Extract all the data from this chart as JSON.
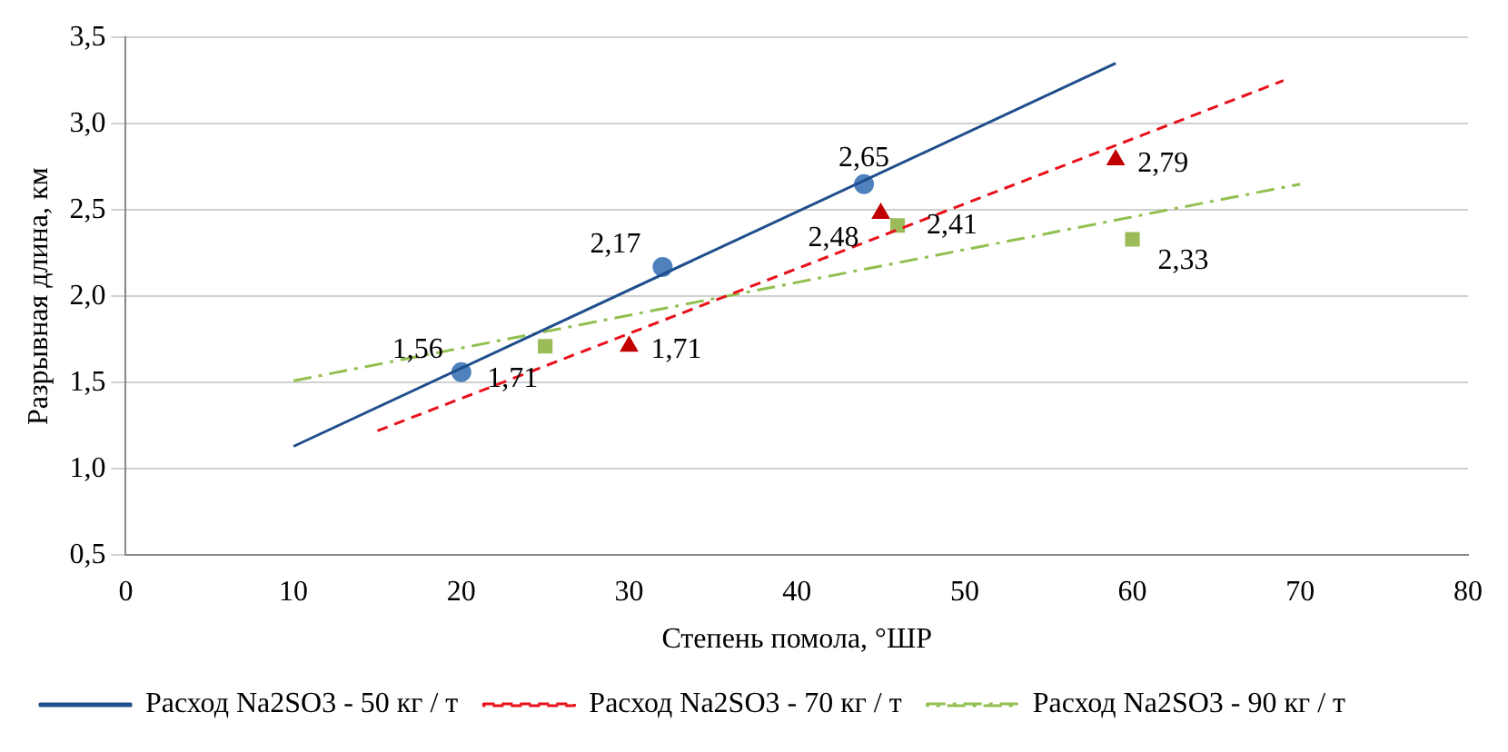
{
  "chart_data": {
    "type": "scatter",
    "xlabel": "Степень помола, °ШР",
    "ylabel": "Разрывная длина, км",
    "xlim": [
      0,
      80
    ],
    "xticks": [
      0,
      10,
      20,
      30,
      40,
      50,
      60,
      70,
      80
    ],
    "ylim": [
      0.5,
      3.5
    ],
    "yticks": [
      {
        "value": 0.5,
        "label": "0,5"
      },
      {
        "value": 1,
        "label": "1,0"
      },
      {
        "value": 1.5,
        "label": "1,5"
      },
      {
        "value": 2,
        "label": "2,0"
      },
      {
        "value": 2.5,
        "label": "2,5"
      },
      {
        "value": 3,
        "label": "3,0"
      },
      {
        "value": 3.5,
        "label": "3,5"
      }
    ],
    "grid": "y",
    "legend": "bottom",
    "series": [
      {
        "type": "line",
        "name": "Расход Na2SO3 - 50 кг / т",
        "color": "#1f4e8c",
        "x": [
          10,
          59
        ],
        "values": [
          1.13,
          3.35
        ],
        "line_style": "solid",
        "marker": "none"
      },
      {
        "type": "line",
        "name": "Расход Na2SO3 - 70 кг / т",
        "color": "#e8101a",
        "x": [
          15,
          69
        ],
        "values": [
          1.22,
          3.25
        ],
        "line_style": "dashed",
        "marker": "none"
      },
      {
        "type": "line",
        "name": "Расход Na2SO3 - 90 кг / т",
        "color": "#92c050",
        "x": [
          10,
          70
        ],
        "values": [
          1.51,
          2.65
        ],
        "line_style": "dashdot",
        "marker": "none"
      },
      {
        "type": "scatter",
        "color": "#4f81bd",
        "x": [
          20,
          32,
          44
        ],
        "values": [
          1.56,
          2.17,
          2.65
        ],
        "marker": "circle",
        "value_labels": [
          "1,56",
          "2,17",
          "2,65"
        ]
      },
      {
        "type": "scatter",
        "color": "#c00000",
        "x": [
          30,
          45,
          59
        ],
        "values": [
          1.71,
          2.48,
          2.79
        ],
        "marker": "triangle",
        "value_labels": [
          "1,71",
          "2,48",
          "2,79"
        ]
      },
      {
        "type": "scatter",
        "color": "#9bbb59",
        "x": [
          25,
          46,
          60
        ],
        "values": [
          1.71,
          2.41,
          2.33
        ],
        "marker": "square",
        "value_labels": [
          "1,71",
          "2,41",
          "2,33"
        ]
      }
    ]
  }
}
